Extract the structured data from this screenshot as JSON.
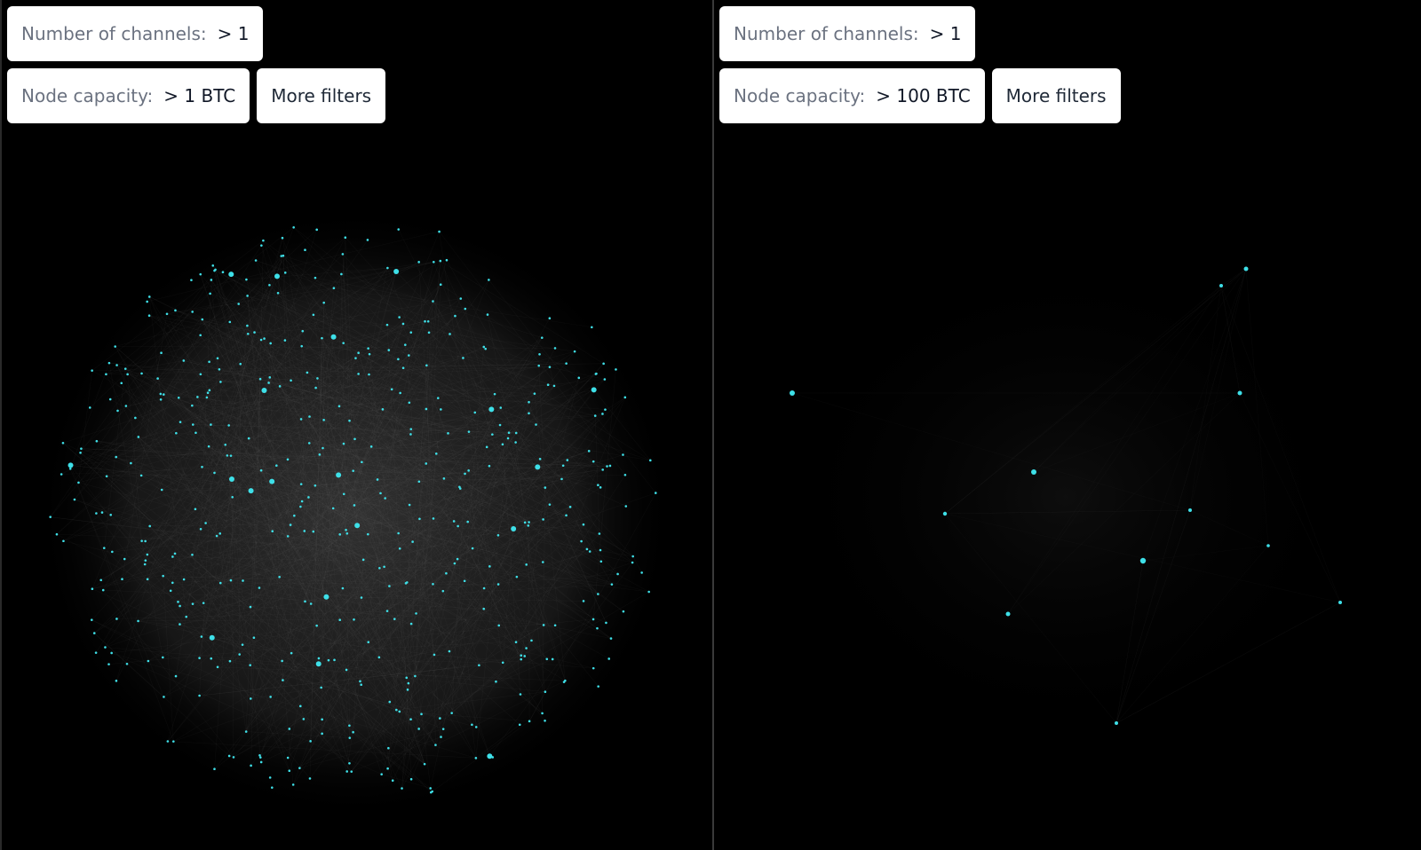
{
  "panels": [
    {
      "filters": [
        {
          "label": "Number of channels:",
          "value": "> 1"
        },
        {
          "label": "Node capacity:",
          "value": "> 1 BTC"
        }
      ],
      "more_button": "More filters"
    },
    {
      "filters": [
        {
          "label": "Number of channels:",
          "value": "> 1"
        },
        {
          "label": "Node capacity:",
          "value": "> 100 BTC"
        }
      ],
      "more_button": "More filters"
    }
  ]
}
